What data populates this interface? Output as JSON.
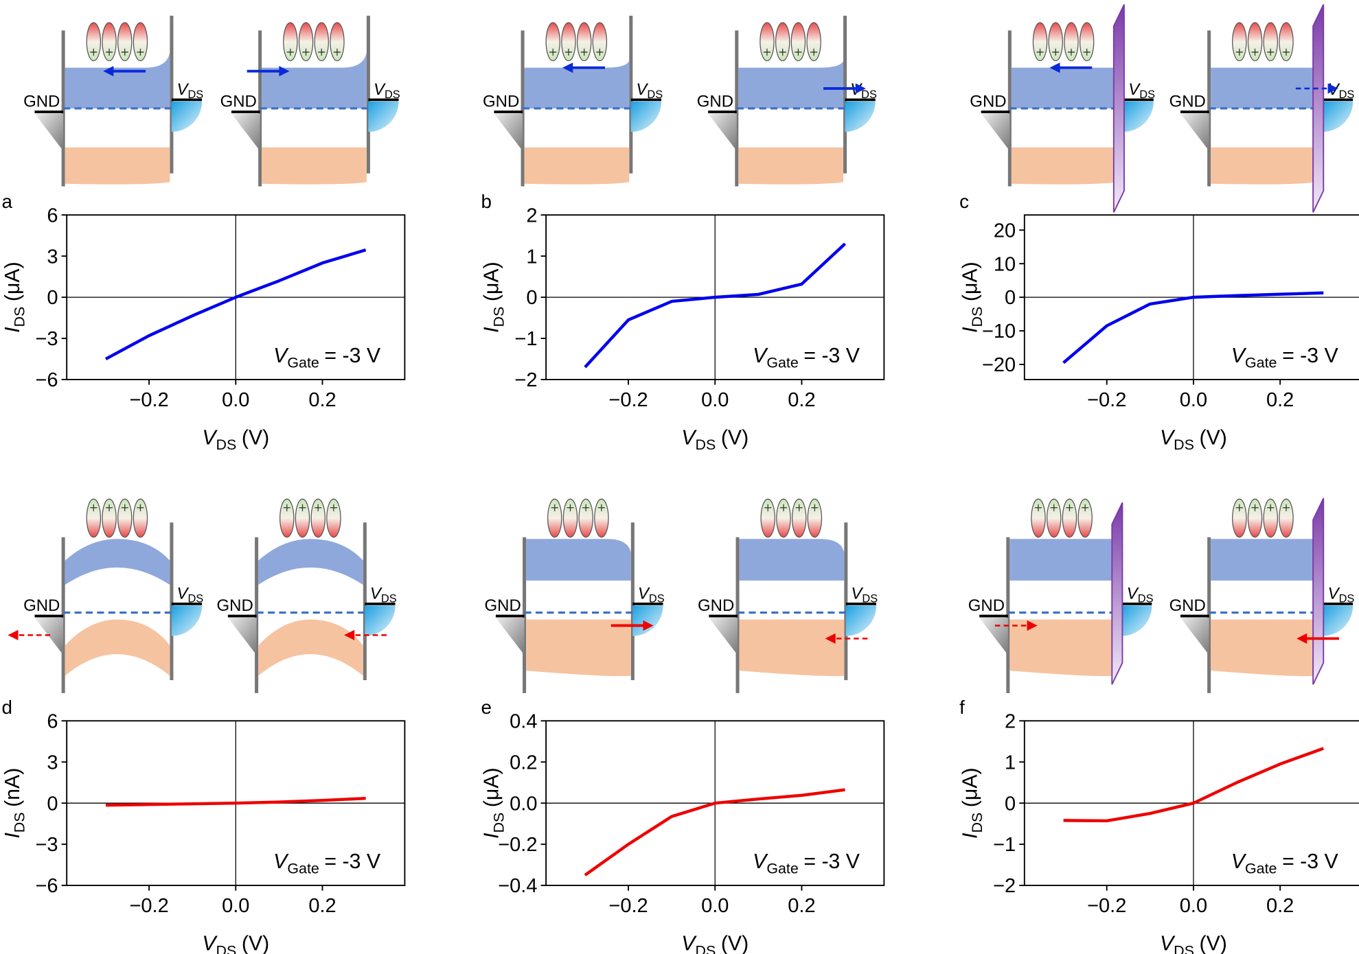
{
  "chart_data": [
    {
      "type": "line",
      "panel": "a",
      "y_label": {
        "symbol": "I",
        "subscript": "DS",
        "unit": "(μA)"
      },
      "x_label": {
        "symbol": "V",
        "subscript": "DS",
        "unit": "(V)"
      },
      "annotation": {
        "symbol": "V",
        "subscript": "Gate",
        "text": "= -3 V"
      },
      "x": [
        -0.3,
        -0.2,
        -0.1,
        0,
        0.1,
        0.2,
        0.3
      ],
      "series": [
        {
          "color": "#0000ee",
          "values": [
            -4.5,
            -2.8,
            -1.35,
            0,
            1.2,
            2.5,
            3.45
          ]
        }
      ],
      "xlim": [
        -0.39,
        0.39
      ],
      "xticks": [
        {
          "value": -0.2,
          "label": "−0.2"
        },
        {
          "value": 0,
          "label": "0.0"
        },
        0.2
      ],
      "ylim": [
        -6,
        6
      ],
      "yticks": [
        {
          "value": -6,
          "label": "−6"
        },
        {
          "value": -3,
          "label": "−3"
        },
        0,
        3,
        6
      ]
    },
    {
      "type": "line",
      "panel": "b",
      "y_label": {
        "symbol": "I",
        "subscript": "DS",
        "unit": "(μA)"
      },
      "x_label": {
        "symbol": "V",
        "subscript": "DS",
        "unit": "(V)"
      },
      "annotation": {
        "symbol": "V",
        "subscript": "Gate",
        "text": "= -3 V"
      },
      "x": [
        -0.3,
        -0.2,
        -0.1,
        0,
        0.1,
        0.2,
        0.3
      ],
      "series": [
        {
          "color": "#0000ee",
          "values": [
            -1.7,
            -0.55,
            -0.1,
            0,
            0.07,
            0.32,
            1.3
          ]
        }
      ],
      "xlim": [
        -0.39,
        0.39
      ],
      "xticks": [
        {
          "value": -0.2,
          "label": "−0.2"
        },
        {
          "value": 0,
          "label": "0.0"
        },
        0.2
      ],
      "ylim": [
        -2,
        2
      ],
      "yticks": [
        {
          "value": -2,
          "label": "−2"
        },
        {
          "value": -1,
          "label": "−1"
        },
        0,
        1,
        2
      ]
    },
    {
      "type": "line",
      "panel": "c",
      "y_label": {
        "symbol": "I",
        "subscript": "DS",
        "unit": "(μA)"
      },
      "x_label": {
        "symbol": "V",
        "subscript": "DS",
        "unit": "(V)"
      },
      "annotation": {
        "symbol": "V",
        "subscript": "Gate",
        "text": "= -3 V"
      },
      "x": [
        -0.3,
        -0.2,
        -0.1,
        0,
        0.1,
        0.2,
        0.3
      ],
      "series": [
        {
          "color": "#0000ee",
          "values": [
            -19.5,
            -8.5,
            -2,
            0,
            0.5,
            0.9,
            1.3
          ]
        }
      ],
      "xlim": [
        -0.39,
        0.39
      ],
      "xticks": [
        {
          "value": -0.2,
          "label": "−0.2"
        },
        {
          "value": 0,
          "label": "0.0"
        },
        0.2
      ],
      "ylim": [
        -24.5,
        24.5
      ],
      "yticks": [
        {
          "value": -20,
          "label": "−20"
        },
        {
          "value": -10,
          "label": "−10"
        },
        0,
        10,
        20
      ]
    },
    {
      "type": "line",
      "panel": "d",
      "y_label": {
        "symbol": "I",
        "subscript": "DS",
        "unit": "(nA)"
      },
      "x_label": {
        "symbol": "V",
        "subscript": "DS",
        "unit": "(V)"
      },
      "annotation": {
        "symbol": "V",
        "subscript": "Gate",
        "text": "= -3 V"
      },
      "x": [
        -0.3,
        -0.2,
        -0.1,
        0,
        0.1,
        0.2,
        0.3
      ],
      "series": [
        {
          "color": "#ee0000",
          "values": [
            -0.15,
            -0.1,
            -0.05,
            0,
            0.08,
            0.2,
            0.35
          ]
        }
      ],
      "xlim": [
        -0.39,
        0.39
      ],
      "xticks": [
        {
          "value": -0.2,
          "label": "−0.2"
        },
        {
          "value": 0,
          "label": "0.0"
        },
        0.2
      ],
      "ylim": [
        -6,
        6
      ],
      "yticks": [
        {
          "value": -6,
          "label": "−6"
        },
        {
          "value": -3,
          "label": "−3"
        },
        0,
        3,
        6
      ]
    },
    {
      "type": "line",
      "panel": "e",
      "y_label": {
        "symbol": "I",
        "subscript": "DS",
        "unit": "(μA)"
      },
      "x_label": {
        "symbol": "V",
        "subscript": "DS",
        "unit": "(V)"
      },
      "annotation": {
        "symbol": "V",
        "subscript": "Gate",
        "text": "= -3 V"
      },
      "x": [
        -0.3,
        -0.2,
        -0.1,
        0,
        0.1,
        0.2,
        0.3
      ],
      "series": [
        {
          "color": "#ee0000",
          "values": [
            -0.35,
            -0.2,
            -0.065,
            0,
            0.02,
            0.038,
            0.065
          ]
        }
      ],
      "xlim": [
        -0.39,
        0.39
      ],
      "xticks": [
        {
          "value": -0.2,
          "label": "−0.2"
        },
        {
          "value": 0,
          "label": "0.0"
        },
        0.2
      ],
      "ylim": [
        -0.4,
        0.4
      ],
      "yticks": [
        {
          "value": -0.4,
          "label": "−0.4"
        },
        {
          "value": -0.2,
          "label": "−0.2"
        },
        {
          "value": 0,
          "label": "0.0"
        },
        0.2,
        0.4
      ]
    },
    {
      "type": "line",
      "panel": "f",
      "y_label": {
        "symbol": "I",
        "subscript": "DS",
        "unit": "(μA)"
      },
      "x_label": {
        "symbol": "V",
        "subscript": "DS",
        "unit": "(V)"
      },
      "annotation": {
        "symbol": "V",
        "subscript": "Gate",
        "text": "= -3 V"
      },
      "x": [
        -0.3,
        -0.2,
        -0.1,
        0,
        0.1,
        0.2,
        0.3
      ],
      "series": [
        {
          "color": "#ee0000",
          "values": [
            -0.42,
            -0.43,
            -0.25,
            0,
            0.5,
            0.95,
            1.33
          ]
        }
      ],
      "xlim": [
        -0.39,
        0.39
      ],
      "xticks": [
        {
          "value": -0.2,
          "label": "−0.2"
        },
        {
          "value": 0,
          "label": "0.0"
        },
        0.2
      ],
      "ylim": [
        -2,
        2
      ],
      "yticks": [
        {
          "value": -2,
          "label": "−2"
        },
        {
          "value": -1,
          "label": "−1"
        },
        0,
        1,
        2
      ]
    }
  ],
  "diagrams": [
    {
      "ground": "GND",
      "drain": "V",
      "drain_subscript": "DS"
    },
    {
      "ground": "GND",
      "drain": "V",
      "drain_subscript": "DS"
    },
    {
      "ground": "GND",
      "drain": "V",
      "drain_subscript": "DS"
    },
    {
      "ground": "GND",
      "drain": "V",
      "drain_subscript": "DS"
    },
    {
      "ground": "GND",
      "drain": "V",
      "drain_subscript": "DS"
    },
    {
      "ground": "GND",
      "drain": "V",
      "drain_subscript": "DS"
    },
    {
      "ground": "GND",
      "drain": "V",
      "drain_subscript": "DS"
    },
    {
      "ground": "GND",
      "drain": "V",
      "drain_subscript": "DS"
    },
    {
      "ground": "GND",
      "drain": "V",
      "drain_subscript": "DS"
    },
    {
      "ground": "GND",
      "drain": "V",
      "drain_subscript": "DS"
    },
    {
      "ground": "GND",
      "drain": "V",
      "drain_subscript": "DS"
    },
    {
      "ground": "GND",
      "drain": "V",
      "drain_subscript": "DS"
    }
  ]
}
